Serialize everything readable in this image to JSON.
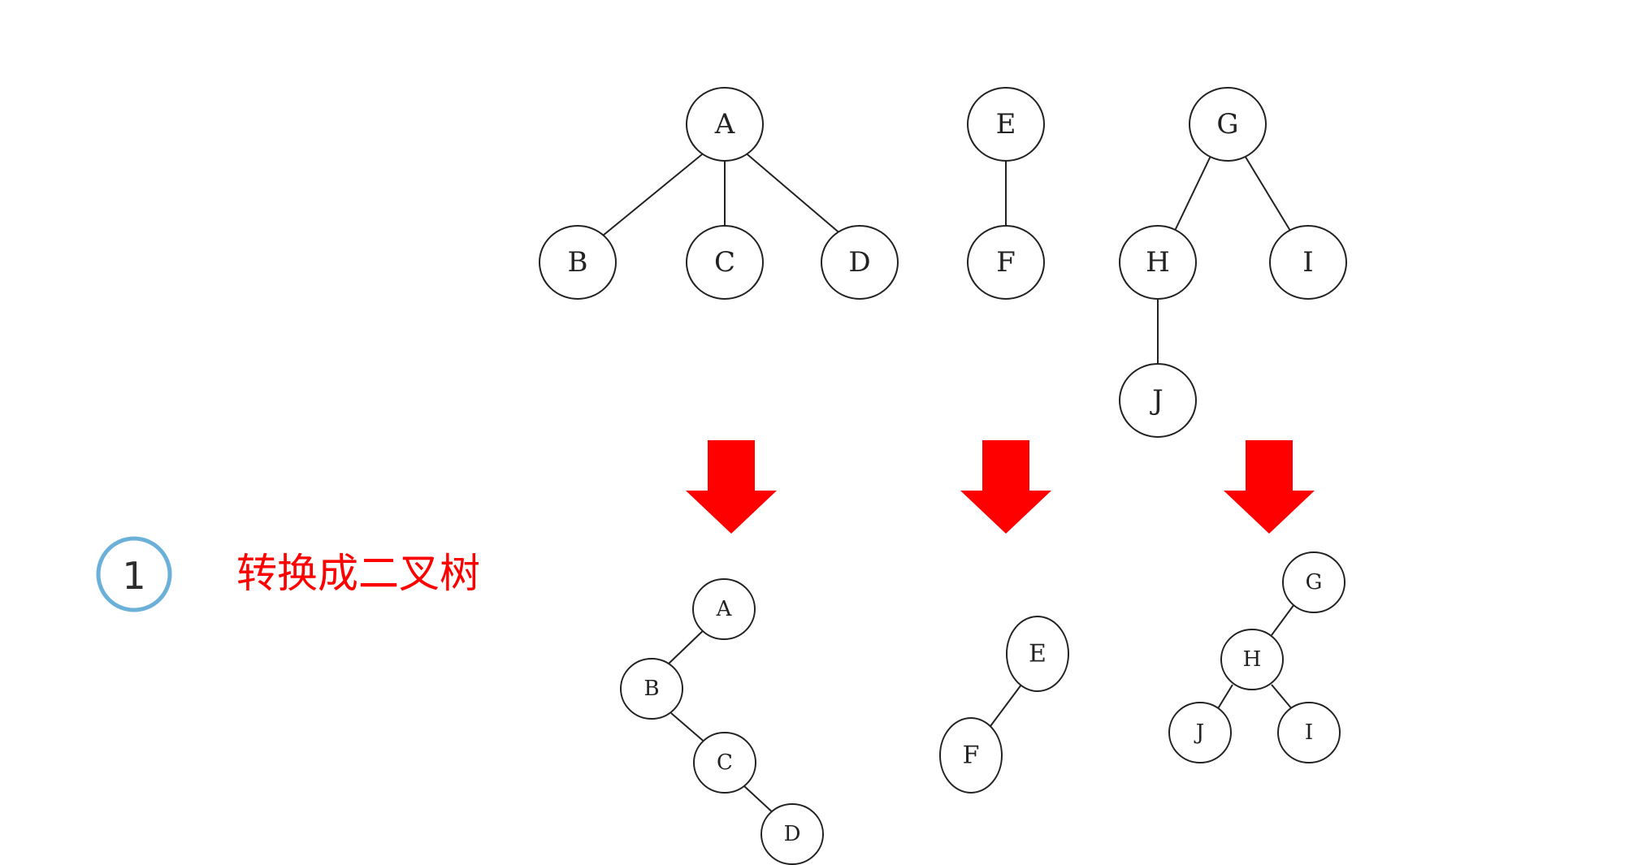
{
  "step": {
    "number": "1",
    "title": "转换成二叉树"
  },
  "colors": {
    "arrow": "#ff0000",
    "step_circle": "#6ab0d8",
    "step_title": "#ff0000",
    "line": "#222222"
  },
  "trees_before": [
    {
      "id": "tree-a",
      "nodes": [
        "A",
        "B",
        "C",
        "D"
      ],
      "edges": [
        [
          "A",
          "B"
        ],
        [
          "A",
          "C"
        ],
        [
          "A",
          "D"
        ]
      ]
    },
    {
      "id": "tree-e",
      "nodes": [
        "E",
        "F"
      ],
      "edges": [
        [
          "E",
          "F"
        ]
      ]
    },
    {
      "id": "tree-g",
      "nodes": [
        "G",
        "H",
        "I",
        "J"
      ],
      "edges": [
        [
          "G",
          "H"
        ],
        [
          "G",
          "I"
        ],
        [
          "H",
          "J"
        ]
      ]
    }
  ],
  "trees_after": [
    {
      "id": "bintree-a",
      "nodes": [
        "A",
        "B",
        "C",
        "D"
      ],
      "edges": [
        [
          "A",
          "B"
        ],
        [
          "B",
          "C"
        ],
        [
          "C",
          "D"
        ]
      ]
    },
    {
      "id": "bintree-e",
      "nodes": [
        "E",
        "F"
      ],
      "edges": [
        [
          "E",
          "F"
        ]
      ]
    },
    {
      "id": "bintree-g",
      "nodes": [
        "G",
        "H",
        "J",
        "I"
      ],
      "edges": [
        [
          "G",
          "H"
        ],
        [
          "H",
          "J"
        ],
        [
          "H",
          "I"
        ]
      ]
    }
  ]
}
